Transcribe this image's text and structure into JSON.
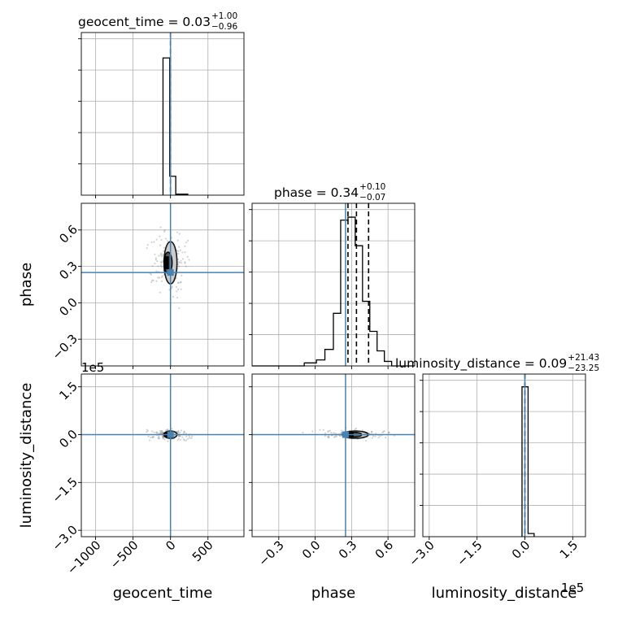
{
  "chart_data": {
    "type": "corner",
    "parameters": [
      "geocent_time",
      "phase",
      "luminosity_distance"
    ],
    "axis_labels": {
      "geocent_time": "geocent_time",
      "phase": "phase",
      "luminosity_distance": "luminosity_distance"
    },
    "titles": [
      {
        "param": "geocent_time",
        "text": "geocent_time = 0.03",
        "upper": "+1.00",
        "lower": "−0.96"
      },
      {
        "param": "phase",
        "text": "phase = 0.34",
        "upper": "+0.10",
        "lower": "−0.07"
      },
      {
        "param": "luminosity_distance",
        "text": "luminosity_distance = 0.09",
        "upper": "+21.43",
        "lower": "−23.25"
      }
    ],
    "ranges": {
      "geocent_time": [
        -1190,
        980
      ],
      "phase": [
        -0.52,
        0.82
      ],
      "luminosity_distance": [
        -320000,
        190000
      ]
    },
    "ticks": {
      "geocent_time": {
        "values": [
          -1000,
          -500,
          0,
          500
        ],
        "labels": [
          "−1000",
          "−500",
          "0",
          "500"
        ]
      },
      "phase": {
        "values": [
          -0.3,
          0.0,
          0.3,
          0.6
        ],
        "labels": [
          "−0.3",
          "0.0",
          "0.3",
          "0.6"
        ]
      },
      "luminosity_distance": {
        "values": [
          -300000,
          -150000,
          0,
          150000
        ],
        "labels": [
          "−3.0",
          "−1.5",
          "0.0",
          "1.5"
        ],
        "offset": "1e5"
      }
    },
    "truths": {
      "geocent_time": 0,
      "phase": 0.25,
      "luminosity_distance": 0
    },
    "truth_color": "#4682b4",
    "histograms": {
      "geocent_time": {
        "bins": [
          -100,
          -10,
          70,
          230
        ],
        "values": [
          0.87,
          0.12,
          0.006
        ],
        "quantiles": [
          0.03
        ],
        "ymax": 1.0
      },
      "phase": {
        "bins": [
          -0.52,
          -0.41,
          -0.3,
          -0.19,
          -0.09,
          0.01,
          0.08,
          0.15,
          0.21,
          0.27,
          0.33,
          0.39,
          0.45,
          0.51,
          0.57,
          0.63,
          0.7,
          0.76,
          0.82
        ],
        "values": [
          0,
          0,
          0,
          0,
          0.02,
          0.04,
          0.11,
          0.35,
          0.97,
          0.99,
          0.8,
          0.43,
          0.23,
          0.1,
          0.03,
          0,
          0,
          0
        ],
        "quantiles": [
          0.27,
          0.34,
          0.44
        ],
        "ymax": 1.05
      },
      "luminosity_distance": {
        "bins": [
          -9000,
          10000,
          29000
        ],
        "values": [
          0.95,
          0.02
        ],
        "quantiles": [
          0.09
        ],
        "ymax": 1.0
      }
    },
    "grid": true
  }
}
